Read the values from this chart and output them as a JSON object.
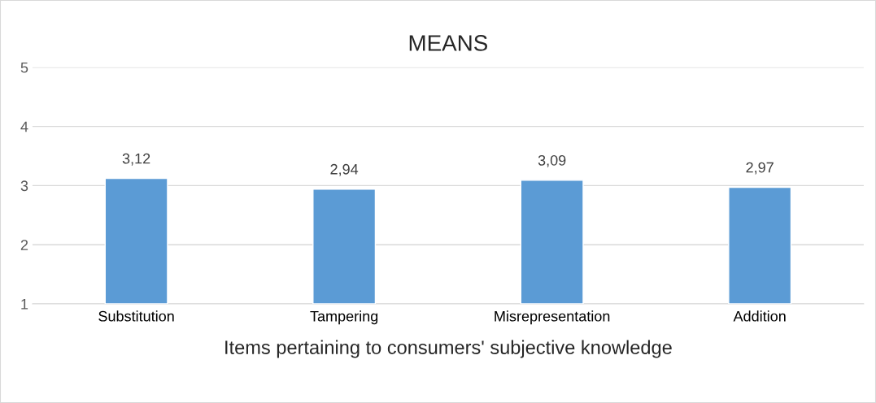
{
  "chart_data": {
    "type": "bar",
    "title": "MEANS",
    "xlabel": "Items pertaining to consumers' subjective knowledge",
    "categories": [
      "Substitution",
      "Tampering",
      "Misrepresentation",
      "Addition"
    ],
    "values": [
      3.12,
      2.94,
      3.09,
      2.97
    ],
    "value_labels": [
      "3,12",
      "2,94",
      "3,09",
      "2,97"
    ],
    "color": "#5b9bd5",
    "ylim": [
      1,
      5
    ],
    "yticks": [
      1,
      2,
      3,
      4,
      5
    ],
    "grid": "y",
    "legend": false
  }
}
